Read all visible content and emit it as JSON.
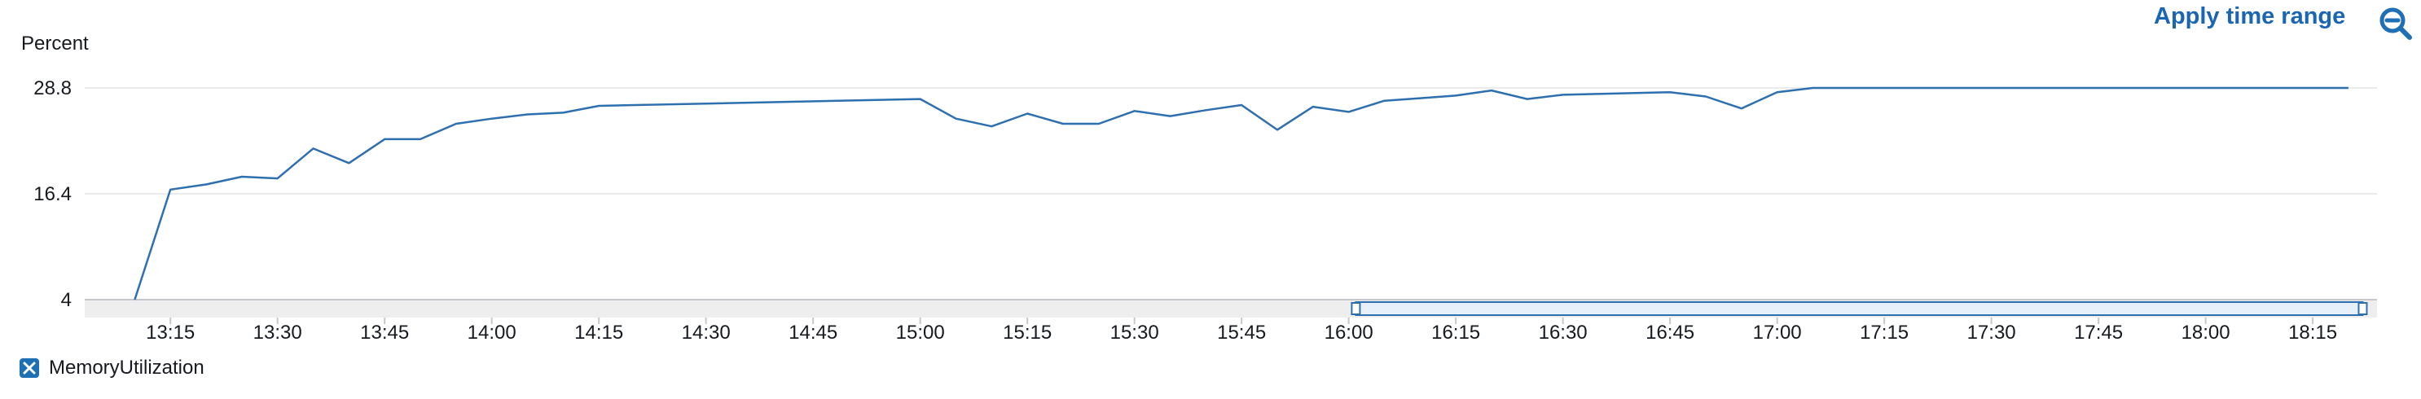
{
  "header": {
    "apply_label": "Apply time range",
    "zoom_icon": "zoom-out-icon"
  },
  "legend": {
    "label": "MemoryUtilization",
    "icon": "close-icon",
    "color": "#1f6fb5"
  },
  "chart_data": {
    "type": "line",
    "title": "",
    "xlabel": "",
    "ylabel": "Percent",
    "y_ticks": [
      "4",
      "16.4",
      "28.8"
    ],
    "ylim": [
      4,
      28.8
    ],
    "x_ticks": [
      "13:15",
      "13:30",
      "13:45",
      "14:00",
      "14:15",
      "14:30",
      "14:45",
      "15:00",
      "15:15",
      "15:30",
      "15:45",
      "16:00",
      "16:15",
      "16:30",
      "16:45",
      "17:00",
      "17:15",
      "17:30",
      "17:45",
      "18:00",
      "18:15"
    ],
    "xlim": [
      "13:03",
      "18:24"
    ],
    "line_color": "#2e6fb0",
    "grid": true,
    "legend_position": "bottom-left",
    "selection_range": [
      "16:01",
      "18:22"
    ],
    "series": [
      {
        "name": "MemoryUtilization",
        "x": [
          "13:10",
          "13:15",
          "13:20",
          "13:25",
          "13:30",
          "13:35",
          "13:40",
          "13:45",
          "13:50",
          "13:55",
          "14:00",
          "14:05",
          "14:10",
          "14:15",
          "15:00",
          "15:05",
          "15:10",
          "15:15",
          "15:20",
          "15:25",
          "15:30",
          "15:35",
          "15:40",
          "15:45",
          "15:50",
          "15:55",
          "16:00",
          "16:05",
          "16:10",
          "16:15",
          "16:20",
          "16:25",
          "16:30",
          "16:45",
          "16:50",
          "16:55",
          "17:00",
          "17:05",
          "18:20"
        ],
        "y": [
          4.0,
          16.9,
          17.5,
          18.4,
          18.2,
          21.7,
          20.0,
          22.8,
          22.8,
          24.6,
          25.2,
          25.7,
          25.9,
          26.7,
          27.5,
          25.2,
          24.3,
          25.8,
          24.6,
          24.6,
          26.1,
          25.5,
          26.2,
          26.8,
          23.9,
          26.6,
          26.0,
          27.3,
          27.6,
          27.9,
          28.5,
          27.5,
          28.0,
          28.3,
          27.8,
          26.4,
          28.3,
          28.8,
          28.8
        ]
      }
    ]
  }
}
